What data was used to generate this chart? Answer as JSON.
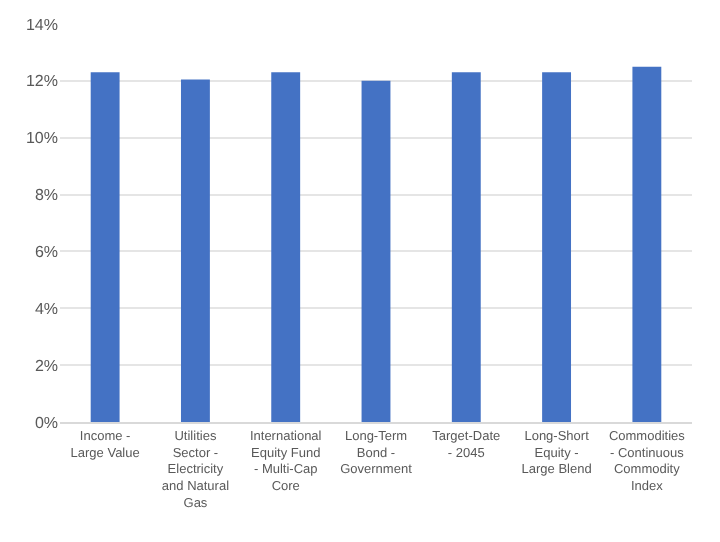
{
  "chart_data": {
    "type": "bar",
    "categories": [
      "Income - Large Value",
      "Utilities Sector - Electricity and Natural Gas",
      "International Equity Fund - Multi-Cap Core",
      "Long-Term Bond - Government",
      "Target-Date - 2045",
      "Long-Short Equity - Large Blend",
      "Commodities - Continuous Commodity Index"
    ],
    "values": [
      12.3,
      12.05,
      12.3,
      12.0,
      12.3,
      12.3,
      12.5
    ],
    "color": "#4472c4",
    "ylim": [
      0,
      14
    ],
    "yticks": [
      {
        "value": 0,
        "label": "0%"
      },
      {
        "value": 2,
        "label": "2%"
      },
      {
        "value": 4,
        "label": "4%"
      },
      {
        "value": 6,
        "label": "6%"
      },
      {
        "value": 8,
        "label": "8%"
      },
      {
        "value": 10,
        "label": "10%"
      },
      {
        "value": 12,
        "label": "12%"
      },
      {
        "value": 14,
        "label": "14%"
      }
    ],
    "grid": "y"
  }
}
